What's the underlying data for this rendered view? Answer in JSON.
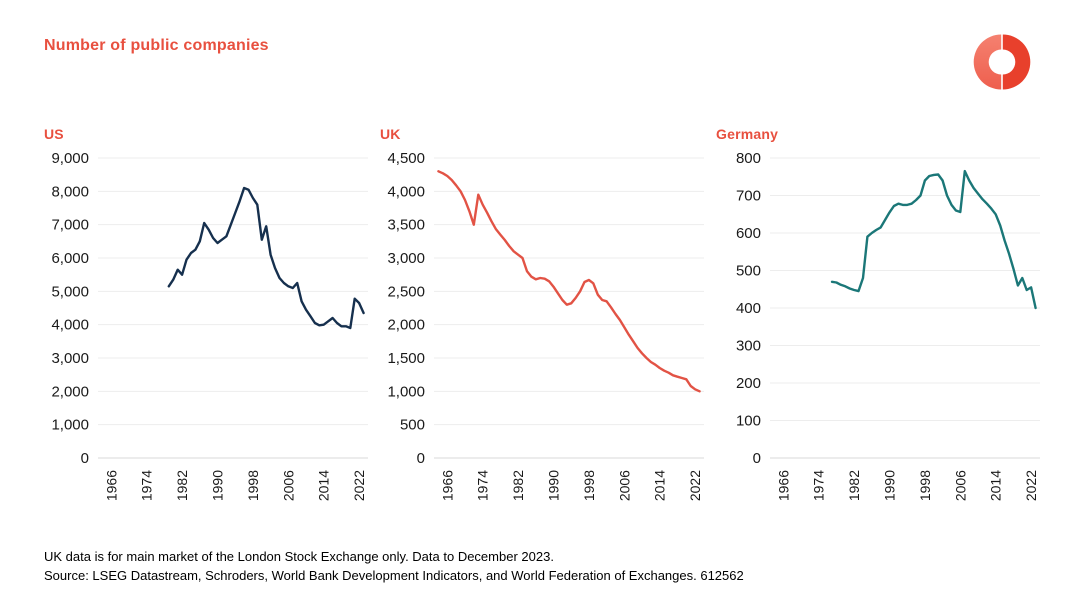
{
  "page": {
    "title": "Number of public companies",
    "footnote_line1": "UK data is for main market  of the London Stock Exchange only. Data to December 2023.",
    "footnote_line2": "Source: LSEG Datastream, Schroders, World Bank Development Indicators, and World Federation of Exchanges. 612562"
  },
  "colors": {
    "accent": "#e8503f",
    "axis_text": "#1a1a1a",
    "grid": "#ededed",
    "zero_line": "#d9d9d9",
    "logo_left": "#f3705f",
    "logo_right": "#e8402c"
  },
  "chart_data": [
    {
      "type": "line",
      "title": "US",
      "color": "#16304e",
      "ylim": [
        0,
        9000
      ],
      "ytick_step": 1000,
      "xlim": [
        1963,
        2024
      ],
      "xticks": [
        1966,
        1974,
        1982,
        1990,
        1998,
        2006,
        2014,
        2022
      ],
      "grid": "horizontal",
      "legend": "none",
      "x": [
        1979,
        1980,
        1981,
        1982,
        1983,
        1984,
        1985,
        1986,
        1987,
        1988,
        1989,
        1990,
        1991,
        1992,
        1993,
        1994,
        1995,
        1996,
        1997,
        1998,
        1999,
        2000,
        2001,
        2002,
        2003,
        2004,
        2005,
        2006,
        2007,
        2008,
        2009,
        2010,
        2011,
        2012,
        2013,
        2014,
        2015,
        2016,
        2017,
        2018,
        2019,
        2020,
        2021,
        2022,
        2023
      ],
      "values": [
        5150,
        5350,
        5650,
        5500,
        5950,
        6150,
        6250,
        6500,
        7050,
        6850,
        6600,
        6450,
        6550,
        6650,
        7000,
        7350,
        7700,
        8100,
        8050,
        7800,
        7600,
        6550,
        6950,
        6100,
        5700,
        5400,
        5250,
        5150,
        5100,
        5250,
        4700,
        4450,
        4250,
        4050,
        3980,
        4000,
        4100,
        4200,
        4050,
        3950,
        3950,
        3900,
        4780,
        4650,
        4350
      ]
    },
    {
      "type": "line",
      "title": "UK",
      "color": "#e25345",
      "ylim": [
        0,
        4500
      ],
      "ytick_step": 500,
      "xlim": [
        1963,
        2024
      ],
      "xticks": [
        1966,
        1974,
        1982,
        1990,
        1998,
        2006,
        2014,
        2022
      ],
      "grid": "horizontal",
      "legend": "none",
      "x": [
        1964,
        1965,
        1966,
        1967,
        1968,
        1969,
        1970,
        1971,
        1972,
        1973,
        1974,
        1975,
        1976,
        1977,
        1978,
        1979,
        1980,
        1981,
        1982,
        1983,
        1984,
        1985,
        1986,
        1987,
        1988,
        1989,
        1990,
        1991,
        1992,
        1993,
        1994,
        1995,
        1996,
        1997,
        1998,
        1999,
        2000,
        2001,
        2002,
        2003,
        2004,
        2005,
        2006,
        2007,
        2008,
        2009,
        2010,
        2011,
        2012,
        2013,
        2014,
        2015,
        2016,
        2017,
        2018,
        2019,
        2020,
        2021,
        2022,
        2023
      ],
      "values": [
        4300,
        4270,
        4230,
        4170,
        4090,
        4000,
        3870,
        3700,
        3500,
        3950,
        3800,
        3680,
        3550,
        3430,
        3350,
        3270,
        3180,
        3100,
        3050,
        3000,
        2800,
        2720,
        2680,
        2700,
        2690,
        2650,
        2570,
        2470,
        2370,
        2300,
        2320,
        2400,
        2500,
        2640,
        2670,
        2620,
        2450,
        2370,
        2350,
        2260,
        2160,
        2070,
        1960,
        1850,
        1750,
        1650,
        1570,
        1500,
        1440,
        1400,
        1350,
        1310,
        1280,
        1240,
        1220,
        1200,
        1180,
        1080,
        1030,
        1000
      ]
    },
    {
      "type": "line",
      "title": "Germany",
      "color": "#1b7778",
      "ylim": [
        0,
        800
      ],
      "ytick_step": 100,
      "xlim": [
        1963,
        2024
      ],
      "xticks": [
        1966,
        1974,
        1982,
        1990,
        1998,
        2006,
        2014,
        2022
      ],
      "grid": "horizontal",
      "legend": "none",
      "x": [
        1977,
        1978,
        1979,
        1980,
        1981,
        1982,
        1983,
        1984,
        1985,
        1986,
        1987,
        1988,
        1989,
        1990,
        1991,
        1992,
        1993,
        1994,
        1995,
        1996,
        1997,
        1998,
        1999,
        2000,
        2001,
        2002,
        2003,
        2004,
        2005,
        2006,
        2007,
        2008,
        2009,
        2010,
        2011,
        2012,
        2013,
        2014,
        2015,
        2016,
        2017,
        2018,
        2019,
        2020,
        2021,
        2022,
        2023
      ],
      "values": [
        470,
        468,
        462,
        458,
        452,
        448,
        445,
        480,
        590,
        600,
        608,
        615,
        635,
        655,
        672,
        678,
        675,
        675,
        678,
        688,
        700,
        740,
        752,
        755,
        756,
        740,
        700,
        675,
        660,
        656,
        765,
        740,
        720,
        705,
        690,
        678,
        665,
        650,
        620,
        580,
        545,
        505,
        460,
        480,
        448,
        455,
        400
      ]
    }
  ]
}
